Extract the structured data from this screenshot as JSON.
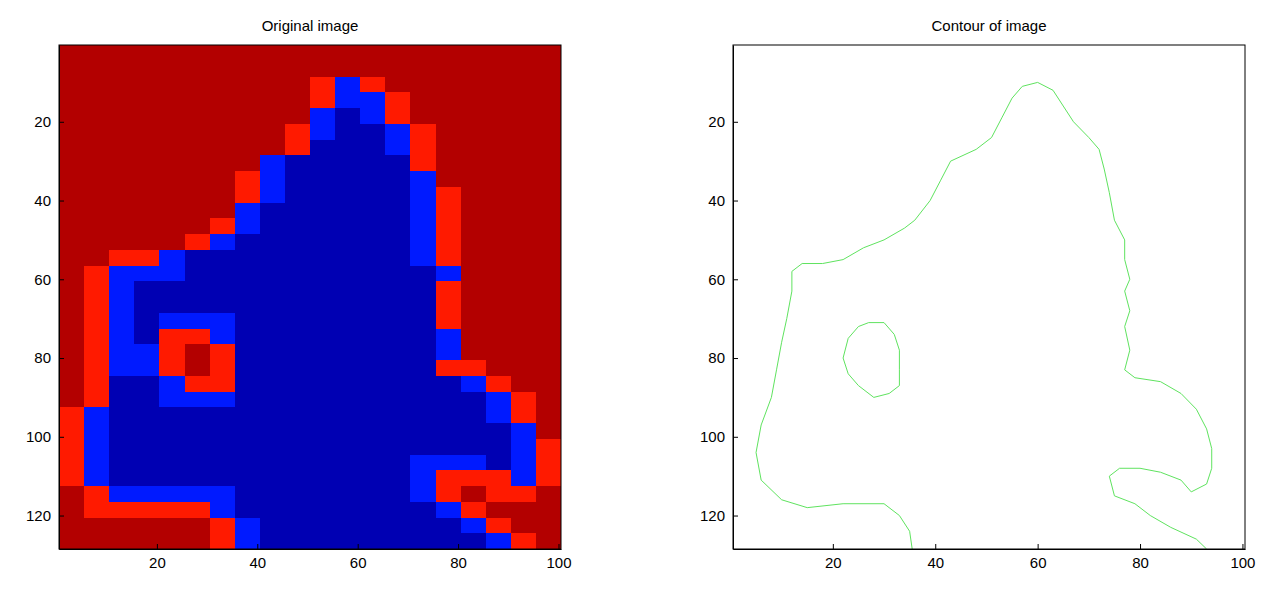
{
  "chart_data": [
    {
      "type": "heatmap",
      "title": "Original image",
      "xlim": [
        0.5,
        100.5
      ],
      "ylim": [
        0.5,
        128.5
      ],
      "xticks": [
        20,
        40,
        60,
        80,
        100
      ],
      "yticks": [
        20,
        40,
        60,
        80,
        100,
        120
      ],
      "color_range": [
        0,
        1
      ],
      "x_edges": [
        0.5,
        5.5,
        10.5,
        15.5,
        20.5,
        25.5,
        30.5,
        35.5,
        40.5,
        45.5,
        50.5,
        55.5,
        60.5,
        65.5,
        70.5,
        75.5,
        80.5,
        85.5,
        90.5,
        95.5,
        100.5
      ],
      "y_edges": [
        0.5,
        4.5,
        8.5,
        12.5,
        16.5,
        20.5,
        24.5,
        28.5,
        32.5,
        36.5,
        40.5,
        44.5,
        48.5,
        52.5,
        56.5,
        60.5,
        64.5,
        68.5,
        72.5,
        76.5,
        80.5,
        84.5,
        88.5,
        92.5,
        96.5,
        100.5,
        104.5,
        108.5,
        112.5,
        116.5,
        120.5,
        124.5,
        128.5
      ],
      "cells": [
        [
          0.95,
          0.95,
          0.95,
          0.95,
          0.95,
          0.95,
          0.95,
          0.95,
          0.95,
          0.95,
          0.95,
          0.95,
          0.95,
          0.95,
          0.95,
          0.95,
          0.95,
          0.95,
          0.95,
          0.95
        ],
        [
          0.95,
          0.95,
          0.95,
          0.95,
          0.95,
          0.95,
          0.95,
          0.95,
          0.95,
          0.95,
          0.95,
          0.95,
          0.95,
          0.95,
          0.95,
          0.95,
          0.95,
          0.95,
          0.95,
          0.95
        ],
        [
          0.95,
          0.95,
          0.95,
          0.95,
          0.95,
          0.95,
          0.95,
          0.95,
          0.95,
          0.95,
          0.85,
          0.15,
          0.85,
          0.95,
          0.95,
          0.95,
          0.95,
          0.95,
          0.95,
          0.95
        ],
        [
          0.95,
          0.95,
          0.95,
          0.95,
          0.95,
          0.95,
          0.95,
          0.95,
          0.95,
          0.95,
          0.85,
          0.15,
          0.15,
          0.85,
          0.95,
          0.95,
          0.95,
          0.95,
          0.95,
          0.95
        ],
        [
          0.95,
          0.95,
          0.95,
          0.95,
          0.95,
          0.95,
          0.95,
          0.95,
          0.95,
          0.95,
          0.15,
          0.05,
          0.15,
          0.85,
          0.95,
          0.95,
          0.95,
          0.95,
          0.95,
          0.95
        ],
        [
          0.95,
          0.95,
          0.95,
          0.95,
          0.95,
          0.95,
          0.95,
          0.95,
          0.95,
          0.85,
          0.15,
          0.05,
          0.05,
          0.15,
          0.85,
          0.95,
          0.95,
          0.95,
          0.95,
          0.95
        ],
        [
          0.95,
          0.95,
          0.95,
          0.95,
          0.95,
          0.95,
          0.95,
          0.95,
          0.95,
          0.85,
          0.05,
          0.05,
          0.05,
          0.15,
          0.85,
          0.95,
          0.95,
          0.95,
          0.95,
          0.95
        ],
        [
          0.95,
          0.95,
          0.95,
          0.95,
          0.95,
          0.95,
          0.95,
          0.95,
          0.15,
          0.05,
          0.05,
          0.05,
          0.05,
          0.05,
          0.85,
          0.95,
          0.95,
          0.95,
          0.95,
          0.95
        ],
        [
          0.95,
          0.95,
          0.95,
          0.95,
          0.95,
          0.95,
          0.95,
          0.85,
          0.15,
          0.05,
          0.05,
          0.05,
          0.05,
          0.05,
          0.15,
          0.95,
          0.95,
          0.95,
          0.95,
          0.95
        ],
        [
          0.95,
          0.95,
          0.95,
          0.95,
          0.95,
          0.95,
          0.95,
          0.85,
          0.15,
          0.05,
          0.05,
          0.05,
          0.05,
          0.05,
          0.15,
          0.85,
          0.95,
          0.95,
          0.95,
          0.95
        ],
        [
          0.95,
          0.95,
          0.95,
          0.95,
          0.95,
          0.95,
          0.95,
          0.15,
          0.05,
          0.05,
          0.05,
          0.05,
          0.05,
          0.05,
          0.15,
          0.85,
          0.95,
          0.95,
          0.95,
          0.95
        ],
        [
          0.95,
          0.95,
          0.95,
          0.95,
          0.95,
          0.95,
          0.85,
          0.15,
          0.05,
          0.05,
          0.05,
          0.05,
          0.05,
          0.05,
          0.15,
          0.85,
          0.95,
          0.95,
          0.95,
          0.95
        ],
        [
          0.95,
          0.95,
          0.95,
          0.95,
          0.95,
          0.85,
          0.15,
          0.05,
          0.05,
          0.05,
          0.05,
          0.05,
          0.05,
          0.05,
          0.15,
          0.85,
          0.95,
          0.95,
          0.95,
          0.95
        ],
        [
          0.95,
          0.95,
          0.85,
          0.85,
          0.15,
          0.05,
          0.05,
          0.05,
          0.05,
          0.05,
          0.05,
          0.05,
          0.05,
          0.05,
          0.15,
          0.85,
          0.95,
          0.95,
          0.95,
          0.95
        ],
        [
          0.95,
          0.85,
          0.15,
          0.15,
          0.15,
          0.05,
          0.05,
          0.05,
          0.05,
          0.05,
          0.05,
          0.05,
          0.05,
          0.05,
          0.05,
          0.15,
          0.95,
          0.95,
          0.95,
          0.95
        ],
        [
          0.95,
          0.85,
          0.15,
          0.05,
          0.05,
          0.05,
          0.05,
          0.05,
          0.05,
          0.05,
          0.05,
          0.05,
          0.05,
          0.05,
          0.05,
          0.85,
          0.95,
          0.95,
          0.95,
          0.95
        ],
        [
          0.95,
          0.85,
          0.15,
          0.05,
          0.05,
          0.05,
          0.05,
          0.05,
          0.05,
          0.05,
          0.05,
          0.05,
          0.05,
          0.05,
          0.05,
          0.85,
          0.95,
          0.95,
          0.95,
          0.95
        ],
        [
          0.95,
          0.85,
          0.15,
          0.05,
          0.15,
          0.15,
          0.15,
          0.05,
          0.05,
          0.05,
          0.05,
          0.05,
          0.05,
          0.05,
          0.05,
          0.85,
          0.95,
          0.95,
          0.95,
          0.95
        ],
        [
          0.95,
          0.85,
          0.15,
          0.05,
          0.85,
          0.85,
          0.15,
          0.05,
          0.05,
          0.05,
          0.05,
          0.05,
          0.05,
          0.05,
          0.05,
          0.15,
          0.95,
          0.95,
          0.95,
          0.95
        ],
        [
          0.95,
          0.85,
          0.15,
          0.15,
          0.85,
          0.95,
          0.85,
          0.05,
          0.05,
          0.05,
          0.05,
          0.05,
          0.05,
          0.05,
          0.05,
          0.15,
          0.95,
          0.95,
          0.95,
          0.95
        ],
        [
          0.95,
          0.85,
          0.15,
          0.15,
          0.85,
          0.95,
          0.85,
          0.05,
          0.05,
          0.05,
          0.05,
          0.05,
          0.05,
          0.05,
          0.05,
          0.85,
          0.85,
          0.95,
          0.95,
          0.95
        ],
        [
          0.95,
          0.85,
          0.05,
          0.05,
          0.15,
          0.85,
          0.85,
          0.05,
          0.05,
          0.05,
          0.05,
          0.05,
          0.05,
          0.05,
          0.05,
          0.05,
          0.15,
          0.85,
          0.95,
          0.95
        ],
        [
          0.95,
          0.85,
          0.05,
          0.05,
          0.15,
          0.15,
          0.15,
          0.05,
          0.05,
          0.05,
          0.05,
          0.05,
          0.05,
          0.05,
          0.05,
          0.05,
          0.05,
          0.15,
          0.85,
          0.95
        ],
        [
          0.85,
          0.15,
          0.05,
          0.05,
          0.05,
          0.05,
          0.05,
          0.05,
          0.05,
          0.05,
          0.05,
          0.05,
          0.05,
          0.05,
          0.05,
          0.05,
          0.05,
          0.15,
          0.85,
          0.95
        ],
        [
          0.85,
          0.15,
          0.05,
          0.05,
          0.05,
          0.05,
          0.05,
          0.05,
          0.05,
          0.05,
          0.05,
          0.05,
          0.05,
          0.05,
          0.05,
          0.05,
          0.05,
          0.05,
          0.15,
          0.95
        ],
        [
          0.85,
          0.15,
          0.05,
          0.05,
          0.05,
          0.05,
          0.05,
          0.05,
          0.05,
          0.05,
          0.05,
          0.05,
          0.05,
          0.05,
          0.05,
          0.05,
          0.05,
          0.05,
          0.15,
          0.85
        ],
        [
          0.85,
          0.15,
          0.05,
          0.05,
          0.05,
          0.05,
          0.05,
          0.05,
          0.05,
          0.05,
          0.05,
          0.05,
          0.05,
          0.05,
          0.15,
          0.15,
          0.15,
          0.05,
          0.15,
          0.85
        ],
        [
          0.85,
          0.15,
          0.05,
          0.05,
          0.05,
          0.05,
          0.05,
          0.05,
          0.05,
          0.05,
          0.05,
          0.05,
          0.05,
          0.05,
          0.15,
          0.85,
          0.85,
          0.85,
          0.15,
          0.85
        ],
        [
          0.95,
          0.85,
          0.15,
          0.15,
          0.15,
          0.15,
          0.15,
          0.05,
          0.05,
          0.05,
          0.05,
          0.05,
          0.05,
          0.05,
          0.15,
          0.85,
          0.95,
          0.85,
          0.85,
          0.95
        ],
        [
          0.95,
          0.85,
          0.85,
          0.85,
          0.85,
          0.85,
          0.15,
          0.05,
          0.05,
          0.05,
          0.05,
          0.05,
          0.05,
          0.05,
          0.05,
          0.15,
          0.85,
          0.95,
          0.95,
          0.95
        ],
        [
          0.95,
          0.95,
          0.95,
          0.95,
          0.95,
          0.95,
          0.85,
          0.15,
          0.05,
          0.05,
          0.05,
          0.05,
          0.05,
          0.05,
          0.05,
          0.05,
          0.15,
          0.85,
          0.95,
          0.95
        ],
        [
          0.95,
          0.95,
          0.95,
          0.95,
          0.95,
          0.95,
          0.85,
          0.15,
          0.05,
          0.05,
          0.05,
          0.05,
          0.05,
          0.05,
          0.05,
          0.05,
          0.05,
          0.15,
          0.85,
          0.95
        ]
      ]
    },
    {
      "type": "contour",
      "title": "Contour of image",
      "xlim": [
        0.5,
        100.5
      ],
      "ylim": [
        0.5,
        128.5
      ],
      "xticks": [
        20,
        40,
        60,
        80,
        100
      ],
      "yticks": [
        20,
        40,
        60,
        80,
        100,
        120
      ],
      "series": [
        {
          "color": "#5fe35f",
          "x": [
            35.5,
            35,
            33,
            30,
            22,
            15,
            10,
            6,
            5,
            6,
            8,
            9,
            10,
            11,
            12,
            12,
            14,
            18,
            22,
            26,
            30,
            34,
            36,
            39,
            41,
            43,
            48,
            51,
            53,
            55,
            57,
            60,
            63,
            65,
            67,
            70,
            72,
            73,
            74,
            75,
            77,
            77,
            78,
            77,
            78,
            77,
            78,
            77,
            79,
            84,
            88,
            91,
            93,
            94,
            94,
            93,
            90,
            88,
            84,
            80,
            76,
            74,
            75,
            79,
            82,
            86,
            91,
            93
          ],
          "y": [
            128.5,
            124,
            120,
            117,
            117,
            118,
            116,
            111,
            104,
            97,
            90,
            83,
            76,
            70,
            63,
            58,
            56,
            56,
            55,
            52,
            50,
            47,
            45,
            40,
            35,
            30,
            27,
            24,
            19,
            14,
            11,
            10,
            12,
            16,
            20,
            24,
            27,
            32,
            38,
            45,
            50,
            55,
            60,
            63,
            68,
            72,
            78,
            83,
            85,
            86,
            89,
            93,
            98,
            103,
            108,
            112,
            114,
            111,
            109,
            108,
            108,
            110,
            115,
            117,
            120,
            123,
            126,
            128.5
          ]
        },
        {
          "color": "#5fe35f",
          "x": [
            27,
            30,
            32,
            33,
            33,
            33,
            31,
            28,
            25,
            23,
            22,
            23,
            25,
            27
          ],
          "y": [
            71,
            71,
            74,
            78,
            83,
            87,
            89,
            90,
            87,
            84,
            80,
            75,
            72,
            71
          ]
        }
      ]
    }
  ]
}
